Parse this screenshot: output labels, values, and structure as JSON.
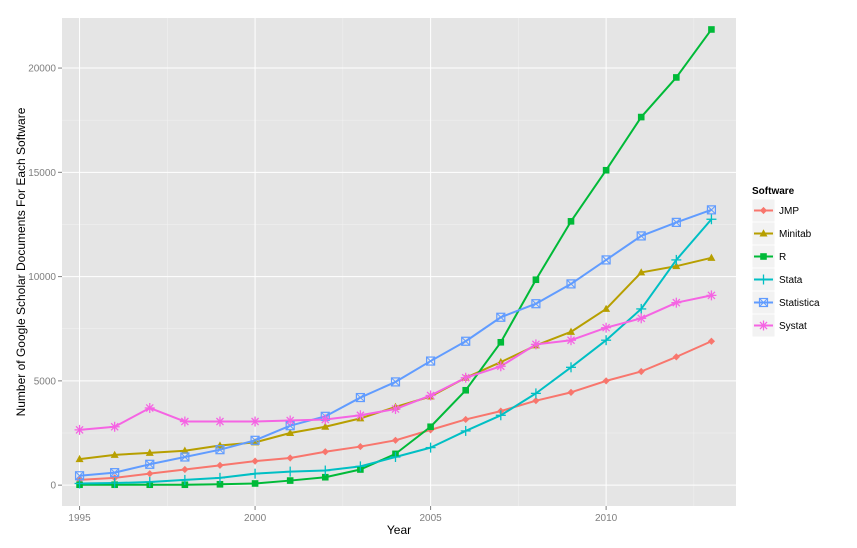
{
  "chart_data": {
    "type": "line",
    "xlabel": "Year",
    "ylabel": "Number of Google Scholar Documents For Each Software",
    "legend_title": "Software",
    "legend_position": "right",
    "grid": true,
    "xlim": [
      1994.5,
      2013.7
    ],
    "ylim": [
      -1000,
      22400
    ],
    "xticks": [
      1995,
      2000,
      2005,
      2010
    ],
    "yticks": [
      0,
      5000,
      10000,
      15000,
      20000
    ],
    "x": [
      1995,
      1996,
      1997,
      1998,
      1999,
      2000,
      2001,
      2002,
      2003,
      2004,
      2005,
      2006,
      2007,
      2008,
      2009,
      2010,
      2011,
      2012,
      2013
    ],
    "series": [
      {
        "name": "JMP",
        "color": "#F8766D",
        "marker": "diamond",
        "values": [
          250,
          350,
          550,
          750,
          950,
          1150,
          1300,
          1600,
          1850,
          2150,
          2650,
          3150,
          3550,
          4050,
          4450,
          5000,
          5450,
          6150,
          6900
        ]
      },
      {
        "name": "Minitab",
        "color": "#B79F00",
        "marker": "triangle",
        "values": [
          1250,
          1450,
          1550,
          1650,
          1900,
          2050,
          2500,
          2800,
          3200,
          3750,
          4250,
          5150,
          5900,
          6700,
          7350,
          8450,
          10200,
          10500,
          10900
        ]
      },
      {
        "name": "R",
        "color": "#00BA38",
        "marker": "square",
        "values": [
          20,
          20,
          20,
          20,
          40,
          80,
          220,
          380,
          750,
          1500,
          2800,
          4550,
          6850,
          9850,
          12650,
          15100,
          17650,
          19550,
          21850
        ]
      },
      {
        "name": "Stata",
        "color": "#00BFC4",
        "marker": "plus",
        "values": [
          80,
          100,
          150,
          250,
          350,
          550,
          650,
          700,
          900,
          1350,
          1800,
          2600,
          3350,
          4400,
          5650,
          6950,
          8450,
          10800,
          12750
        ]
      },
      {
        "name": "Statistica",
        "color": "#619CFF",
        "marker": "boxsquare",
        "values": [
          450,
          600,
          1000,
          1350,
          1700,
          2150,
          2850,
          3300,
          4200,
          4950,
          5950,
          6900,
          8050,
          8700,
          9650,
          10800,
          11950,
          12600,
          13200
        ]
      },
      {
        "name": "Systat",
        "color": "#F564E3",
        "marker": "asterisk",
        "values": [
          2650,
          2800,
          3700,
          3050,
          3050,
          3050,
          3100,
          3150,
          3350,
          3650,
          4300,
          5150,
          5700,
          6750,
          6950,
          7550,
          8000,
          8750,
          9100
        ]
      }
    ]
  }
}
